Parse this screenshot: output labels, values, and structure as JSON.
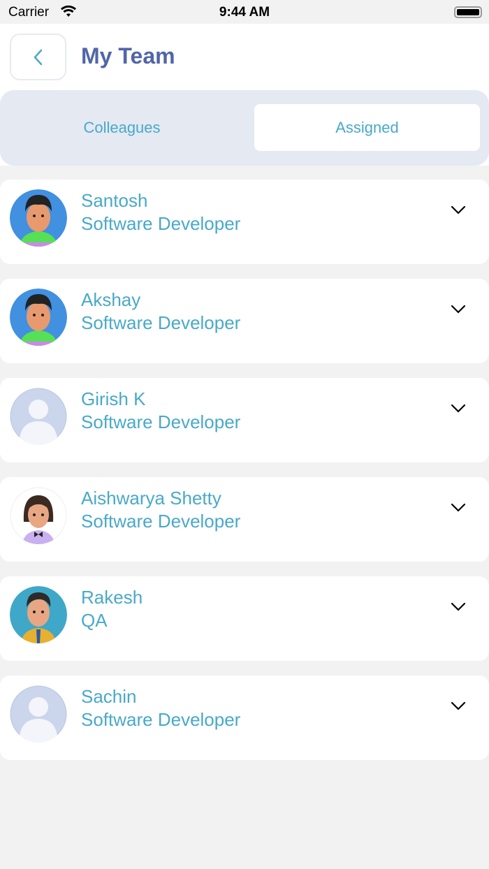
{
  "status_bar": {
    "carrier": "Carrier",
    "time": "9:44 AM"
  },
  "header": {
    "title": "My Team",
    "back_icon": "chevron-left-icon"
  },
  "tabs": [
    {
      "label": "Colleagues",
      "selected": false
    },
    {
      "label": "Assigned",
      "selected": true
    }
  ],
  "colors": {
    "accent": "#49a9c9",
    "title": "#5166a8",
    "segment_bg": "#e4e9f2"
  },
  "members": [
    {
      "name": "Santosh",
      "role": "Software Developer",
      "avatar": "boy-green-hoodie"
    },
    {
      "name": "Akshay",
      "role": "Software Developer",
      "avatar": "boy-green-hoodie"
    },
    {
      "name": "Girish K",
      "role": "Software Developer",
      "avatar": "placeholder"
    },
    {
      "name": "Aishwarya Shetty",
      "role": "Software Developer",
      "avatar": "girl"
    },
    {
      "name": "Rakesh",
      "role": "QA",
      "avatar": "boy-tie"
    },
    {
      "name": "Sachin",
      "role": "Software Developer",
      "avatar": "placeholder"
    }
  ]
}
